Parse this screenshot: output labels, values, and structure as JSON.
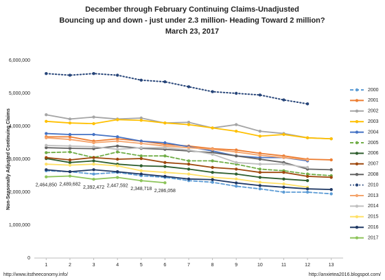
{
  "chart_data": {
    "type": "line",
    "title": "December through February Continuing Claims-Unadjusted",
    "subtitle": "Bouncing up and down - just under 2.3 million- Heading Toward 2 million?",
    "date": "March 23, 2017",
    "y_label": "Non-Seasonally Adjusted Continuing Claims",
    "footer_left": "http://www.itstheeconomy.info/",
    "footer_right": "http://anxietea2016.blogspot.com/",
    "x": [
      1,
      2,
      3,
      4,
      5,
      6,
      7,
      8,
      9,
      10,
      11,
      12,
      13
    ],
    "xlim": [
      0.5,
      13.5
    ],
    "xticks": [
      1,
      2,
      3,
      4,
      5,
      6,
      7,
      8,
      9,
      10,
      11,
      12,
      13
    ],
    "ylim": [
      0,
      6000000
    ],
    "yticks": [
      0,
      {
        "value": 1000000,
        "label": "1,000,000"
      },
      {
        "value": 2000000,
        "label": "2,000,000"
      },
      {
        "value": 3000000,
        "label": "3,000,000"
      },
      {
        "value": 4000000,
        "label": "4,000,000"
      },
      {
        "value": 5000000,
        "label": "5,000,000"
      },
      {
        "value": 6000000,
        "label": "6,000,000"
      }
    ],
    "grid": false,
    "legend": "right",
    "series": [
      {
        "name": "2000",
        "color": "#5b9bd5",
        "dash": "dashed",
        "values": [
          2650000,
          2620000,
          2550000,
          2600000,
          2500000,
          2450000,
          2350000,
          2300000,
          2180000,
          2100000,
          2000000,
          2000000,
          1950000
        ]
      },
      {
        "name": "2001",
        "color": "#ed7d31",
        "values": [
          3680000,
          3680000,
          3550000,
          3620000,
          3550000,
          3450000,
          3400000,
          3320000,
          3280000,
          3180000,
          3100000,
          3000000,
          2980000
        ]
      },
      {
        "name": "2002",
        "color": "#a5a5a5",
        "values": [
          4350000,
          4220000,
          4280000,
          4220000,
          4250000,
          4100000,
          4120000,
          3950000,
          4050000,
          3850000,
          3780000,
          3650000,
          3620000
        ]
      },
      {
        "name": "2003",
        "color": "#ffc000",
        "values": [
          4150000,
          4100000,
          4080000,
          4200000,
          4180000,
          4100000,
          4050000,
          3950000,
          3850000,
          3700000,
          3750000,
          3650000,
          3620000
        ]
      },
      {
        "name": "2004",
        "color": "#4472c4",
        "values": [
          3780000,
          3750000,
          3750000,
          3680000,
          3550000,
          3500000,
          3380000,
          3250000,
          3100000,
          3050000,
          3050000,
          2950000,
          null
        ]
      },
      {
        "name": "2005",
        "color": "#70ad47",
        "dash": "dashed",
        "values": [
          3200000,
          3220000,
          3050000,
          3220000,
          3100000,
          3100000,
          2950000,
          2950000,
          2850000,
          2700000,
          2650000,
          2550000,
          2500000
        ]
      },
      {
        "name": "2006",
        "color": "#2e5e2e",
        "values": [
          3020000,
          2900000,
          2950000,
          2850000,
          2800000,
          2780000,
          2700000,
          2600000,
          2550000,
          2450000,
          2400000,
          2350000,
          null
        ]
      },
      {
        "name": "2007",
        "color": "#9e480e",
        "values": [
          3050000,
          2980000,
          3050000,
          3000000,
          3020000,
          2900000,
          2850000,
          2750000,
          2700000,
          2600000,
          2600000,
          2480000,
          2450000
        ]
      },
      {
        "name": "2008",
        "color": "#636363",
        "values": [
          3350000,
          3330000,
          3320000,
          3400000,
          3330000,
          3300000,
          3250000,
          3200000,
          3100000,
          3000000,
          2900000,
          2700000,
          2680000
        ]
      },
      {
        "name": "2010",
        "color": "#264478",
        "dash": "dotted",
        "values": [
          5600000,
          5550000,
          5600000,
          5550000,
          5400000,
          5350000,
          5200000,
          5050000,
          5000000,
          4950000,
          4800000,
          4680000,
          null
        ]
      },
      {
        "name": "2013",
        "color": "#f4a46c",
        "values": [
          3650000,
          3600000,
          3500000,
          3550000,
          3480000,
          3400000,
          3350000,
          3300000,
          3220000,
          3120000,
          3050000,
          2980000,
          null
        ]
      },
      {
        "name": "2014",
        "color": "#bfbfbf",
        "values": [
          3420000,
          3400000,
          3380000,
          3300000,
          3350000,
          3350000,
          3280000,
          3150000,
          2900000,
          2850000,
          2850000,
          2750000,
          null
        ]
      },
      {
        "name": "2015",
        "color": "#ffe066",
        "values": [
          2850000,
          2820000,
          2850000,
          2800000,
          2650000,
          2600000,
          2550000,
          2450000,
          2400000,
          2300000,
          2250000,
          2150000,
          null
        ]
      },
      {
        "name": "2016",
        "color": "#1f3864",
        "values": [
          2680000,
          2620000,
          2680000,
          2620000,
          2550000,
          2480000,
          2400000,
          2380000,
          2280000,
          2200000,
          2150000,
          2100000,
          2080000
        ]
      },
      {
        "name": "2017",
        "color": "#8dc45a",
        "values": [
          2464850,
          2489682,
          2392472,
          2447592,
          2348718,
          2286058,
          null,
          null,
          null,
          null,
          null,
          null,
          null
        ],
        "value_labels": [
          "2,464,850",
          "2,489,682",
          "2,392,472",
          "2,447,592",
          "2,348,718",
          "2,286,058",
          null,
          null,
          null,
          null,
          null,
          null,
          null
        ]
      }
    ]
  }
}
